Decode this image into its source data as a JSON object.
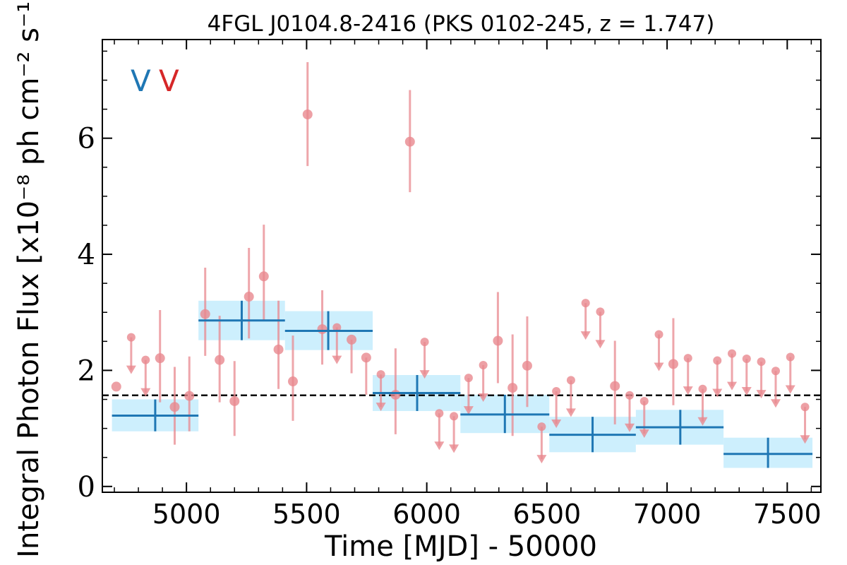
{
  "chart_data": {
    "type": "scatter",
    "title": "4FGL J0104.8-2416 (PKS 0102-245, z = 1.747)",
    "xlabel": "Time [MJD] - 50000",
    "ylabel": "Integral Photon Flux [x10⁻⁸ ph cm⁻² s⁻¹]",
    "xlim": [
      4650,
      7640
    ],
    "ylim": [
      -0.1,
      7.7
    ],
    "xticks": [
      5000,
      5500,
      6000,
      6500,
      7000,
      7500
    ],
    "xtick_labels": [
      "5000",
      "5500",
      "6000",
      "6500",
      "7000",
      "7500"
    ],
    "yticks": [
      0,
      2,
      4,
      6
    ],
    "ytick_labels": [
      "0",
      "2",
      "4",
      "6"
    ],
    "grid": false,
    "legend": {
      "placement": "top-left",
      "entries": [
        {
          "label": "V",
          "color": "#1f77b4"
        },
        {
          "label": "V",
          "color": "#d62728"
        }
      ]
    },
    "mean_flux": 1.57,
    "colors": {
      "binned": "#1f77b4",
      "band": "#cdeffd",
      "points": "#e8888f",
      "mean_line": "#000000"
    },
    "series": [
      {
        "kind": "binned",
        "points": [
          {
            "x": 4870,
            "y": 1.22,
            "xmin": 4690,
            "xmax": 5050,
            "ylo": 0.95,
            "yhi": 1.5
          },
          {
            "x": 5230,
            "y": 2.86,
            "xmin": 5050,
            "xmax": 5410,
            "ylo": 2.52,
            "yhi": 3.2
          },
          {
            "x": 5590,
            "y": 2.68,
            "xmin": 5410,
            "xmax": 5775,
            "ylo": 2.35,
            "yhi": 3.02
          },
          {
            "x": 5960,
            "y": 1.61,
            "xmin": 5775,
            "xmax": 6140,
            "ylo": 1.3,
            "yhi": 1.92
          },
          {
            "x": 6325,
            "y": 1.24,
            "xmin": 6140,
            "xmax": 6510,
            "ylo": 0.92,
            "yhi": 1.58
          },
          {
            "x": 6690,
            "y": 0.89,
            "xmin": 6510,
            "xmax": 6870,
            "ylo": 0.59,
            "yhi": 1.2
          },
          {
            "x": 7055,
            "y": 1.02,
            "xmin": 6870,
            "xmax": 7235,
            "ylo": 0.72,
            "yhi": 1.32
          },
          {
            "x": 7420,
            "y": 0.56,
            "xmin": 7235,
            "xmax": 7605,
            "ylo": 0.32,
            "yhi": 0.84
          }
        ]
      },
      {
        "kind": "detections",
        "points": [
          {
            "x": 4708,
            "y": 1.72,
            "ylo": 1.72,
            "yhi": 1.72
          },
          {
            "x": 4890,
            "y": 2.21,
            "ylo": 1.45,
            "yhi": 3.04
          },
          {
            "x": 4951,
            "y": 1.37,
            "ylo": 0.72,
            "yhi": 2.06
          },
          {
            "x": 5012,
            "y": 1.56,
            "ylo": 0.95,
            "yhi": 2.24
          },
          {
            "x": 5078,
            "y": 2.97,
            "ylo": 2.25,
            "yhi": 3.77
          },
          {
            "x": 5138,
            "y": 2.18,
            "ylo": 1.45,
            "yhi": 2.94
          },
          {
            "x": 5200,
            "y": 1.47,
            "ylo": 0.87,
            "yhi": 2.16
          },
          {
            "x": 5260,
            "y": 3.27,
            "ylo": 2.55,
            "yhi": 4.11
          },
          {
            "x": 5322,
            "y": 3.62,
            "ylo": 2.85,
            "yhi": 4.51
          },
          {
            "x": 5383,
            "y": 2.36,
            "ylo": 1.68,
            "yhi": 3.2
          },
          {
            "x": 5443,
            "y": 1.81,
            "ylo": 1.13,
            "yhi": 2.6
          },
          {
            "x": 5504,
            "y": 6.41,
            "ylo": 5.52,
            "yhi": 7.31
          },
          {
            "x": 5565,
            "y": 2.71,
            "ylo": 2.1,
            "yhi": 3.38
          },
          {
            "x": 5687,
            "y": 2.53,
            "ylo": 1.95,
            "yhi": 2.53
          },
          {
            "x": 5748,
            "y": 2.22,
            "ylo": 1.58,
            "yhi": 2.22
          },
          {
            "x": 5870,
            "y": 1.58,
            "ylo": 0.9,
            "yhi": 2.38
          },
          {
            "x": 5930,
            "y": 5.94,
            "ylo": 5.07,
            "yhi": 6.83
          },
          {
            "x": 6296,
            "y": 2.51,
            "ylo": 1.78,
            "yhi": 3.35
          },
          {
            "x": 6357,
            "y": 1.7,
            "ylo": 0.87,
            "yhi": 2.62
          },
          {
            "x": 6418,
            "y": 2.08,
            "ylo": 1.37,
            "yhi": 2.93
          },
          {
            "x": 6783,
            "y": 1.73,
            "ylo": 1.07,
            "yhi": 2.51
          },
          {
            "x": 7026,
            "y": 2.11,
            "ylo": 1.4,
            "yhi": 2.9
          }
        ]
      },
      {
        "kind": "upper_limits",
        "points": [
          {
            "x": 4770,
            "y": 2.57
          },
          {
            "x": 4830,
            "y": 2.18
          },
          {
            "x": 5626,
            "y": 2.74
          },
          {
            "x": 5809,
            "y": 1.93
          },
          {
            "x": 5991,
            "y": 2.49
          },
          {
            "x": 6052,
            "y": 1.26
          },
          {
            "x": 6113,
            "y": 1.21
          },
          {
            "x": 6174,
            "y": 1.87
          },
          {
            "x": 6235,
            "y": 2.09
          },
          {
            "x": 6478,
            "y": 1.03
          },
          {
            "x": 6539,
            "y": 1.64
          },
          {
            "x": 6600,
            "y": 1.83
          },
          {
            "x": 6661,
            "y": 3.16
          },
          {
            "x": 6722,
            "y": 3.01
          },
          {
            "x": 6844,
            "y": 1.57
          },
          {
            "x": 6905,
            "y": 1.47
          },
          {
            "x": 6966,
            "y": 2.62
          },
          {
            "x": 7087,
            "y": 2.21
          },
          {
            "x": 7148,
            "y": 1.68
          },
          {
            "x": 7209,
            "y": 2.17
          },
          {
            "x": 7270,
            "y": 2.29
          },
          {
            "x": 7331,
            "y": 2.2
          },
          {
            "x": 7392,
            "y": 2.15
          },
          {
            "x": 7452,
            "y": 1.99
          },
          {
            "x": 7513,
            "y": 2.23
          },
          {
            "x": 7574,
            "y": 1.37
          }
        ]
      }
    ]
  }
}
